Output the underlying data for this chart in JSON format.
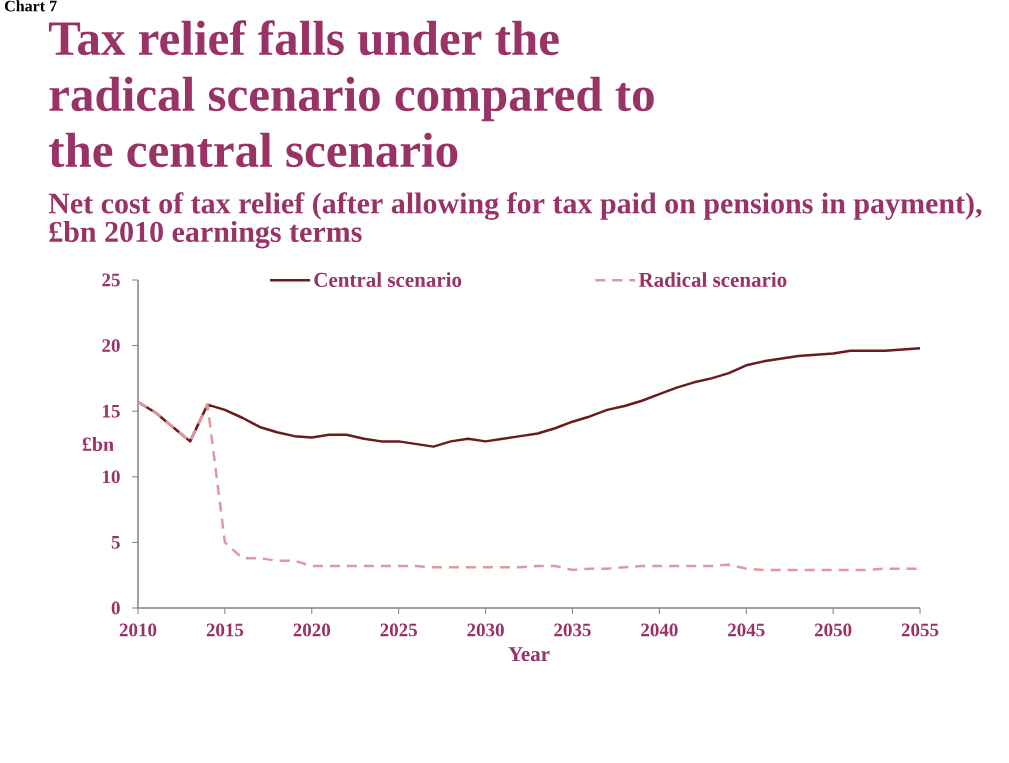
{
  "chart_data": {
    "type": "line",
    "title": "Tax relief falls under the radical scenario compared to the central scenario",
    "subtitle": "Net cost of tax relief (after allowing for tax paid on pensions in payment), £bn 2010 earnings terms",
    "xlabel": "Year",
    "ylabel": "£bn",
    "annotations": [
      "Chart 7"
    ],
    "x": [
      2010,
      2011,
      2012,
      2013,
      2014,
      2015,
      2016,
      2017,
      2018,
      2019,
      2020,
      2021,
      2022,
      2023,
      2024,
      2025,
      2026,
      2027,
      2028,
      2029,
      2030,
      2031,
      2032,
      2033,
      2034,
      2035,
      2036,
      2037,
      2038,
      2039,
      2040,
      2041,
      2042,
      2043,
      2044,
      2045,
      2046,
      2047,
      2048,
      2049,
      2050,
      2051,
      2052,
      2053,
      2054,
      2055
    ],
    "series": [
      {
        "name": "Central scenario",
        "color": "#6b1a1f",
        "line_style": "solid",
        "values": [
          15.7,
          14.9,
          13.8,
          12.7,
          15.5,
          15.1,
          14.5,
          13.8,
          13.4,
          13.1,
          13.0,
          13.2,
          13.2,
          12.9,
          12.7,
          12.7,
          12.5,
          12.3,
          12.7,
          12.9,
          12.7,
          12.9,
          13.1,
          13.3,
          13.7,
          14.2,
          14.6,
          15.1,
          15.4,
          15.8,
          16.3,
          16.8,
          17.2,
          17.5,
          17.9,
          18.5,
          18.8,
          19.0,
          19.2,
          19.3,
          19.4,
          19.6,
          19.6,
          19.6,
          19.7,
          19.8
        ]
      },
      {
        "name": "Radical scenario",
        "color": "#e0999a",
        "line_style": "dashed",
        "values": [
          15.7,
          14.9,
          13.8,
          12.7,
          15.5,
          5.0,
          3.8,
          3.8,
          3.6,
          3.6,
          3.2,
          3.2,
          3.2,
          3.2,
          3.2,
          3.2,
          3.2,
          3.1,
          3.1,
          3.1,
          3.1,
          3.1,
          3.1,
          3.2,
          3.2,
          2.9,
          3.0,
          3.0,
          3.1,
          3.2,
          3.2,
          3.2,
          3.2,
          3.2,
          3.3,
          3.0,
          2.9,
          2.9,
          2.9,
          2.9,
          2.9,
          2.9,
          2.9,
          3.0,
          3.0,
          3.0
        ]
      }
    ],
    "xlim": [
      2010,
      2055
    ],
    "xticks": [
      2010,
      2015,
      2020,
      2025,
      2030,
      2035,
      2040,
      2045,
      2050,
      2055
    ],
    "ylim": [
      0,
      25
    ],
    "yticks": [
      0,
      5,
      10,
      15,
      20,
      25
    ],
    "grid": false,
    "legend": "top",
    "marker": "none"
  }
}
